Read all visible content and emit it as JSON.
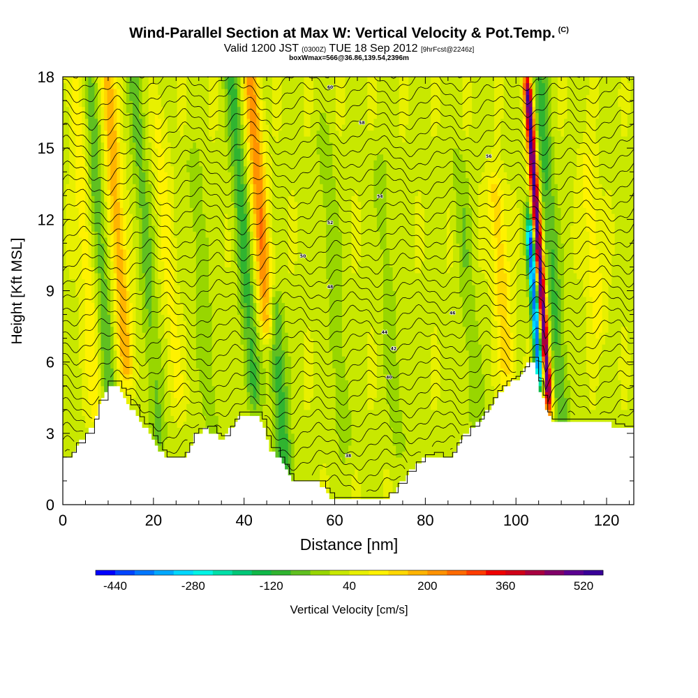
{
  "titles": {
    "main": "Wind-Parallel Section at Max W: Vertical Velocity & Pot.Temp.",
    "main_mark": "(C)",
    "valid": "Valid 1200 JST",
    "valid_zulu": "(0300Z)",
    "valid_date": "TUE 18 Sep 2012",
    "fcst": "[9hrFcst@2246z]",
    "box": "boxWmax=566@36.86,139.54,2396m"
  },
  "chart_data": {
    "type": "heatmap",
    "xlabel": "Distance [nm]",
    "ylabel": "Height [Kft MSL]",
    "xlim": [
      0,
      126
    ],
    "ylim": [
      0,
      18
    ],
    "x_ticks": [
      "0",
      "20",
      "40",
      "60",
      "80",
      "100",
      "120"
    ],
    "y_ticks": [
      "0",
      "3",
      "6",
      "9",
      "12",
      "15",
      "18"
    ],
    "colorbar": {
      "title": "Vertical Velocity [cm/s]",
      "min": -480,
      "max": 560,
      "step": 40,
      "tick_labels": [
        "-440",
        "-280",
        "-120",
        "40",
        "200",
        "360",
        "520"
      ],
      "colors": [
        "#0000ff",
        "#0044ff",
        "#0077ff",
        "#00a8ff",
        "#00d8ff",
        "#00f5e6",
        "#00e0a8",
        "#00c878",
        "#10b848",
        "#30b430",
        "#60c020",
        "#98d600",
        "#c8e800",
        "#e8f000",
        "#fff200",
        "#ffd800",
        "#ffb400",
        "#ff9200",
        "#ff6a00",
        "#ff3c00",
        "#f00000",
        "#d00018",
        "#a80040",
        "#800068",
        "#5a0090",
        "#380098"
      ]
    },
    "terrain_profile": {
      "x": [
        0,
        2,
        3,
        5,
        7,
        8,
        10,
        12,
        13,
        14,
        15,
        17,
        18,
        20,
        21,
        22,
        23,
        25,
        27,
        28,
        29,
        30,
        32,
        34,
        35,
        37,
        38,
        39,
        40,
        41,
        43,
        44,
        45,
        46,
        48,
        49,
        50,
        51,
        53,
        55,
        57,
        58,
        59,
        60,
        61,
        62,
        63,
        64,
        66,
        68,
        70,
        72,
        74,
        76,
        78,
        80,
        82,
        84,
        86,
        87,
        88,
        90,
        92,
        93,
        94,
        95,
        96,
        97,
        98,
        99,
        100,
        101,
        102,
        103,
        104,
        105,
        106,
        107,
        108,
        109,
        110,
        112,
        114,
        116,
        118,
        120,
        122,
        124,
        126
      ],
      "kft": [
        2.0,
        2.2,
        2.6,
        3.0,
        3.6,
        4.4,
        5.2,
        5.2,
        4.9,
        4.6,
        4.2,
        3.7,
        3.4,
        2.9,
        2.6,
        2.3,
        2.0,
        2.0,
        2.2,
        2.6,
        3.0,
        3.2,
        3.3,
        3.0,
        2.9,
        3.3,
        3.6,
        3.9,
        3.9,
        3.9,
        3.9,
        3.6,
        2.9,
        2.4,
        2.0,
        1.7,
        1.3,
        1.0,
        1.0,
        1.0,
        1.0,
        0.7,
        0.5,
        0.3,
        0.3,
        0.3,
        0.3,
        0.3,
        0.3,
        0.3,
        0.3,
        0.5,
        0.9,
        1.4,
        1.8,
        2.1,
        2.2,
        2.0,
        2.2,
        2.6,
        2.9,
        3.3,
        3.6,
        3.9,
        4.2,
        4.5,
        4.8,
        5.0,
        5.2,
        5.3,
        5.4,
        5.6,
        5.8,
        6.2,
        6.2,
        5.2,
        4.6,
        3.9,
        3.6,
        3.6,
        3.6,
        3.6,
        3.6,
        3.6,
        3.6,
        3.6,
        3.4,
        3.3,
        3.3
      ]
    },
    "updraft_cores": [
      {
        "x": 7.5,
        "z0": 4,
        "z1": 18,
        "w": 80
      },
      {
        "x": 14,
        "z0": 6,
        "z1": 18,
        "w": 160
      },
      {
        "x": 25,
        "z0": 5,
        "z1": 16,
        "w": 60
      },
      {
        "x": 45,
        "z0": 8,
        "z1": 18,
        "w": 200
      },
      {
        "x": 98,
        "z0": 6,
        "z1": 13,
        "w": 120
      },
      {
        "x": 107,
        "z0": 5,
        "z1": 17,
        "w": 520
      },
      {
        "x": 118,
        "z0": 8,
        "z1": 14,
        "w": 80
      }
    ],
    "downdraft_cores": [
      {
        "x": 11,
        "z0": 3,
        "z1": 18,
        "w": -100
      },
      {
        "x": 21,
        "z0": 3,
        "z1": 18,
        "w": -80
      },
      {
        "x": 33,
        "z0": 3,
        "z1": 14,
        "w": -60
      },
      {
        "x": 42,
        "z0": 5,
        "z1": 18,
        "w": -120
      },
      {
        "x": 49,
        "z0": 1.5,
        "z1": 8,
        "w": -140
      },
      {
        "x": 62,
        "z0": 3,
        "z1": 15,
        "w": -60
      },
      {
        "x": 74,
        "z0": 3,
        "z1": 14,
        "w": -50
      },
      {
        "x": 91,
        "z0": 4,
        "z1": 14,
        "w": -60
      },
      {
        "x": 105,
        "z0": 6,
        "z1": 11,
        "w": -440
      },
      {
        "x": 110,
        "z0": 4,
        "z1": 18,
        "w": -120
      }
    ],
    "theta_contour_labels": [
      {
        "text": "60",
        "x": 59,
        "z": 17.5
      },
      {
        "text": "58",
        "x": 66,
        "z": 16.0
      },
      {
        "text": "56",
        "x": 94,
        "z": 14.6
      },
      {
        "text": "54",
        "x": 70,
        "z": 12.9
      },
      {
        "text": "52",
        "x": 59,
        "z": 11.8
      },
      {
        "text": "50",
        "x": 53,
        "z": 10.4
      },
      {
        "text": "48",
        "x": 59,
        "z": 9.1
      },
      {
        "text": "46",
        "x": 86,
        "z": 8.0
      },
      {
        "text": "44",
        "x": 71,
        "z": 7.2
      },
      {
        "text": "42",
        "x": 73,
        "z": 6.5
      },
      {
        "text": "40",
        "x": 72,
        "z": 5.3
      },
      {
        "text": "38",
        "x": 63,
        "z": 2.0
      }
    ]
  }
}
